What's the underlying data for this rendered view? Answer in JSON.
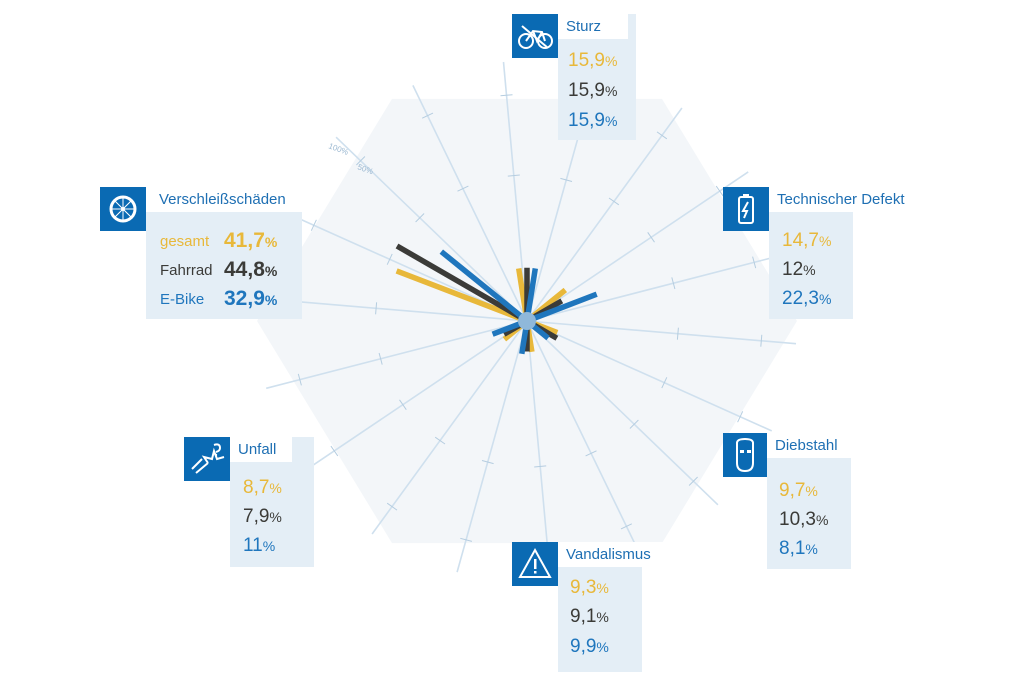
{
  "chart_data": {
    "type": "radial-bar",
    "series": [
      {
        "name": "gesamt",
        "color": "#e8b83a"
      },
      {
        "name": "Fahrrad",
        "color": "#3b3b38"
      },
      {
        "name": "E-Bike",
        "color": "#1f76bd"
      }
    ],
    "scale_ticks": [
      "100%",
      "50%"
    ],
    "categories": [
      {
        "name": "Sturz",
        "icon": "bicycle-icon",
        "values": {
          "gesamt": [
            "15,9",
            "%"
          ],
          "fahrrad": [
            "15,9",
            "%"
          ],
          "ebike": [
            "15,9",
            "%"
          ]
        },
        "num": [
          15.9,
          15.9,
          15.9
        ]
      },
      {
        "name": "Technischer Defekt",
        "icon": "battery-icon",
        "values": {
          "gesamt": [
            "14,7",
            "%"
          ],
          "fahrrad": [
            "12",
            "%"
          ],
          "ebike": [
            "22,3",
            "%"
          ]
        },
        "num": [
          14.7,
          12,
          22.3
        ]
      },
      {
        "name": "Diebstahl",
        "icon": "mask-icon",
        "values": {
          "gesamt": [
            "9,7",
            "%"
          ],
          "fahrrad": [
            "10,3",
            "%"
          ],
          "ebike": [
            "8,1",
            "%"
          ]
        },
        "num": [
          9.7,
          10.3,
          8.1
        ]
      },
      {
        "name": "Vandalismus",
        "icon": "warning-icon",
        "values": {
          "gesamt": [
            "9,3",
            "%"
          ],
          "fahrrad": [
            "9,1",
            "%"
          ],
          "ebike": [
            "9,9",
            "%"
          ]
        },
        "num": [
          9.3,
          9.1,
          9.9
        ]
      },
      {
        "name": "Unfall",
        "icon": "crash-icon",
        "values": {
          "gesamt": [
            "8,7",
            "%"
          ],
          "fahrrad": [
            "7,9",
            "%"
          ],
          "ebike": [
            "11",
            "%"
          ]
        },
        "num": [
          8.7,
          7.9,
          11
        ]
      },
      {
        "name": "Verschleißschäden",
        "icon": "wheel-icon",
        "values": {
          "gesamt": [
            "41,7",
            "%"
          ],
          "fahrrad": [
            "44,8",
            "%"
          ],
          "ebike": [
            "32,9",
            "%"
          ]
        },
        "num": [
          41.7,
          44.8,
          32.9
        ]
      }
    ],
    "legend_labels": {
      "gesamt": "gesamt",
      "fahrrad": "Fahrrad",
      "ebike": "E-Bike"
    }
  }
}
